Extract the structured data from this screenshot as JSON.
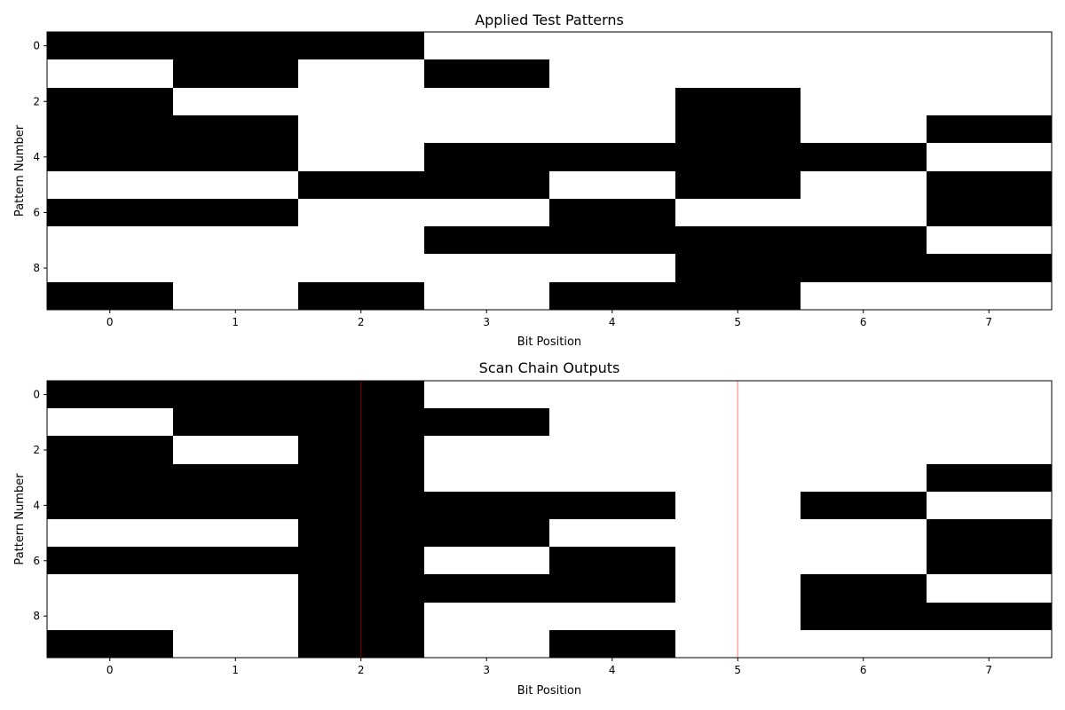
{
  "chart_data": [
    {
      "type": "heatmap",
      "title": "Applied Test Patterns",
      "xlabel": "Bit Position",
      "ylabel": "Pattern Number",
      "x_ticks": [
        0,
        1,
        2,
        3,
        4,
        5,
        6,
        7
      ],
      "y_ticks": [
        0,
        2,
        4,
        6,
        8
      ],
      "rows": 10,
      "cols": 8,
      "colormap": {
        "1": "#000000",
        "0": "#ffffff"
      },
      "matrix": [
        [
          1,
          1,
          1,
          0,
          0,
          0,
          0,
          0
        ],
        [
          0,
          1,
          0,
          1,
          0,
          0,
          0,
          0
        ],
        [
          1,
          0,
          0,
          0,
          0,
          1,
          0,
          0
        ],
        [
          1,
          1,
          0,
          0,
          0,
          1,
          0,
          1
        ],
        [
          1,
          1,
          0,
          1,
          1,
          1,
          1,
          0
        ],
        [
          0,
          0,
          1,
          1,
          0,
          1,
          0,
          1
        ],
        [
          1,
          1,
          0,
          0,
          1,
          0,
          0,
          1
        ],
        [
          0,
          0,
          0,
          1,
          1,
          1,
          1,
          0
        ],
        [
          0,
          0,
          0,
          0,
          0,
          1,
          1,
          1
        ],
        [
          1,
          0,
          1,
          0,
          1,
          1,
          0,
          0
        ]
      ],
      "highlight_lines": []
    },
    {
      "type": "heatmap",
      "title": "Scan Chain Outputs",
      "xlabel": "Bit Position",
      "ylabel": "Pattern Number",
      "x_ticks": [
        0,
        1,
        2,
        3,
        4,
        5,
        6,
        7
      ],
      "y_ticks": [
        0,
        2,
        4,
        6,
        8
      ],
      "rows": 10,
      "cols": 8,
      "colormap": {
        "1": "#000000",
        "0": "#ffffff"
      },
      "matrix": [
        [
          1,
          1,
          1,
          0,
          0,
          0,
          0,
          0
        ],
        [
          0,
          1,
          1,
          1,
          0,
          0,
          0,
          0
        ],
        [
          1,
          0,
          1,
          0,
          0,
          0,
          0,
          0
        ],
        [
          1,
          1,
          1,
          0,
          0,
          0,
          0,
          1
        ],
        [
          1,
          1,
          1,
          1,
          1,
          0,
          1,
          0
        ],
        [
          0,
          0,
          1,
          1,
          0,
          0,
          0,
          1
        ],
        [
          1,
          1,
          1,
          0,
          1,
          0,
          0,
          1
        ],
        [
          0,
          0,
          1,
          1,
          1,
          0,
          1,
          0
        ],
        [
          0,
          0,
          1,
          0,
          0,
          0,
          1,
          1
        ],
        [
          1,
          0,
          1,
          0,
          1,
          0,
          0,
          0
        ]
      ],
      "highlight_lines": [
        {
          "x": 2,
          "color": "#ff0000",
          "opacity": 0.35
        },
        {
          "x": 5,
          "color": "#ff0000",
          "opacity": 0.35
        }
      ]
    }
  ]
}
